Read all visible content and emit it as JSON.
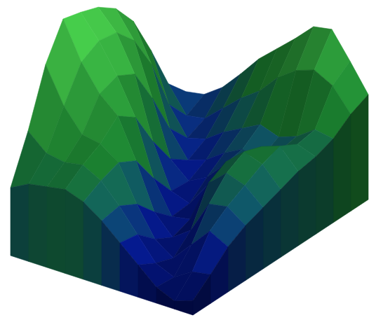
{
  "chart_data": {
    "type": "surface",
    "z": [
      [
        3.0,
        3.2,
        4.0,
        5.2,
        6.5,
        7.5,
        8.5,
        9.6,
        9.8,
        8.2,
        6.5
      ],
      [
        4.2,
        2.6,
        2.8,
        3.8,
        4.8,
        5.6,
        6.8,
        7.6,
        8.0,
        7.4,
        6.0
      ],
      [
        7.0,
        4.0,
        2.3,
        2.6,
        3.4,
        4.0,
        4.6,
        4.2,
        4.6,
        5.4,
        5.2
      ],
      [
        9.5,
        7.2,
        3.6,
        2.0,
        2.4,
        3.2,
        3.8,
        3.6,
        4.4,
        5.2,
        4.8
      ],
      [
        11.0,
        9.4,
        6.2,
        2.8,
        1.8,
        2.4,
        3.6,
        4.6,
        5.4,
        5.8,
        4.6
      ],
      [
        11.8,
        10.6,
        8.4,
        4.6,
        1.9,
        1.5,
        3.0,
        4.8,
        5.8,
        5.4,
        4.2
      ],
      [
        12.2,
        10.8,
        9.0,
        6.8,
        3.4,
        1.4,
        1.6,
        4.2,
        5.2,
        4.8,
        3.8
      ],
      [
        12.5,
        10.2,
        8.6,
        7.6,
        5.2,
        2.4,
        1.2,
        2.0,
        4.0,
        4.2,
        3.4
      ],
      [
        10.4,
        8.2,
        6.8,
        6.6,
        5.8,
        3.6,
        1.8,
        1.0,
        2.2,
        3.4,
        2.8
      ],
      [
        7.0,
        6.0,
        5.8,
        6.0,
        5.4,
        4.2,
        2.8,
        1.4,
        0.9,
        1.6,
        1.8
      ],
      [
        4.2,
        4.8,
        5.0,
        5.2,
        4.8,
        4.0,
        3.0,
        2.0,
        1.0,
        0.5,
        0.9
      ]
    ],
    "zlim": [
      0,
      13
    ],
    "tick_labels": false
  }
}
